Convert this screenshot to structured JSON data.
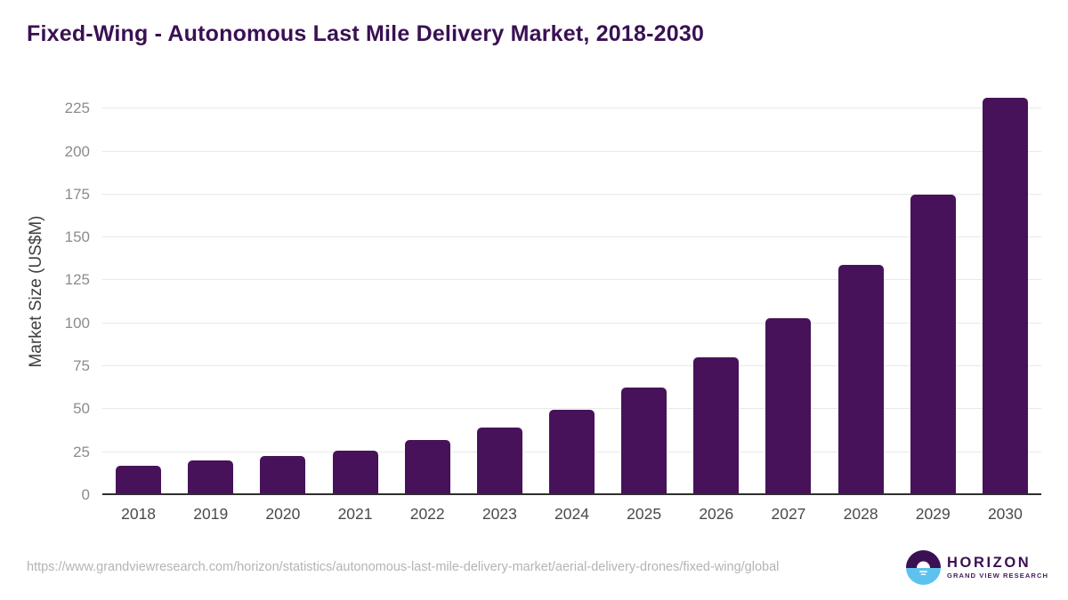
{
  "page": {
    "title": "Fixed-Wing - Autonomous Last Mile Delivery Market, 2018-2030"
  },
  "chart_data": {
    "type": "bar",
    "title": "Fixed-Wing - Autonomous Last Mile Delivery Market, 2018-2030",
    "categories": [
      "2018",
      "2019",
      "2020",
      "2021",
      "2022",
      "2023",
      "2024",
      "2025",
      "2026",
      "2027",
      "2028",
      "2029",
      "2030"
    ],
    "values": [
      17,
      20,
      23,
      26,
      32,
      39.5,
      49.5,
      62.5,
      80,
      103,
      134,
      175,
      231.5
    ],
    "xlabel": "",
    "ylabel": "Market Size (US$M)",
    "ylim": [
      0,
      237
    ],
    "yticks": [
      0,
      25,
      50,
      75,
      100,
      125,
      150,
      175,
      200,
      225
    ],
    "grid": true,
    "legend_position": "none",
    "bar_color": "#471259"
  },
  "footer": {
    "source_url": "https://www.grandviewresearch.com/horizon/statistics/autonomous-last-mile-delivery-market/aerial-delivery-drones/fixed-wing/global",
    "logo": {
      "name": "HORIZON",
      "tagline": "GRAND VIEW RESEARCH"
    }
  },
  "colors": {
    "title_text": "#3a1053",
    "bar": "#471259",
    "axis_line": "#2e2e2e",
    "gridline": "#e8e8e8",
    "tick_label": "#8c8c8c",
    "x_label": "#4a4a4a",
    "y_axis_title": "#3f3f3f",
    "url_text": "#b4b4b4",
    "logo_purple": "#3b1053",
    "logo_blue": "#5ec2ee"
  }
}
